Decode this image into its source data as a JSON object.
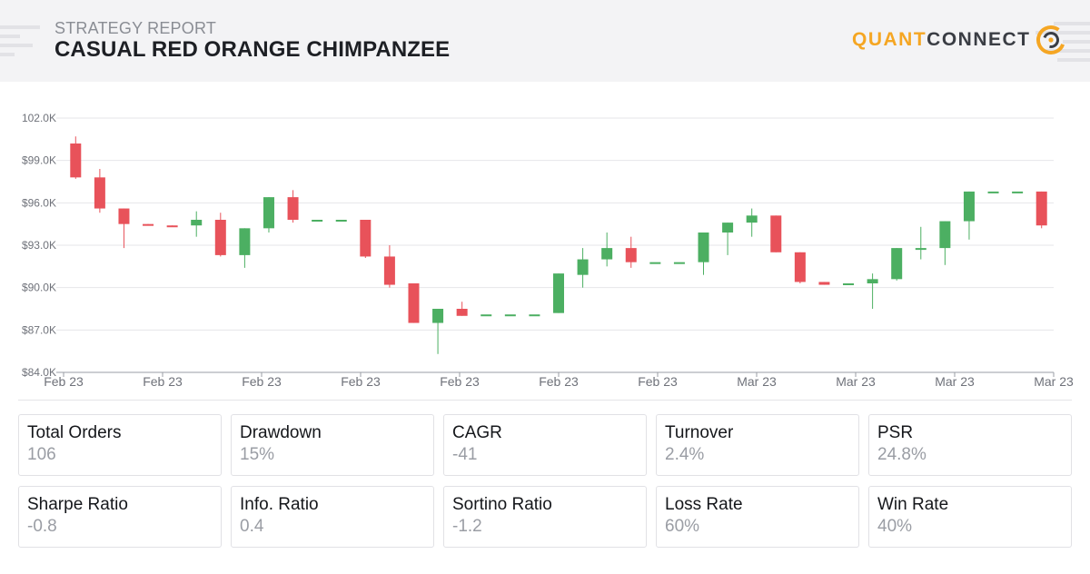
{
  "header": {
    "report_label": "STRATEGY REPORT",
    "title": "CASUAL RED ORANGE CHIMPANZEE",
    "brand_quant": "QUANT",
    "brand_connect": "CONNECT",
    "colors": {
      "brand_orange": "#f5a623",
      "background": "#f3f3f5"
    }
  },
  "chart_data": {
    "type": "candlestick",
    "y_ticks": [
      "$84.0K",
      "$87.0K",
      "$90.0K",
      "$93.0K",
      "$96.0K",
      "$99.0K",
      "102.0K"
    ],
    "y_tick_values": [
      84000,
      87000,
      90000,
      93000,
      96000,
      99000,
      102000
    ],
    "ylim": [
      84000,
      102000
    ],
    "x_ticks": [
      "Feb 23",
      "Feb 23",
      "Feb 23",
      "Feb 23",
      "Feb 23",
      "Feb 23",
      "Feb 23",
      "Mar 23",
      "Mar 23",
      "Mar 23",
      "Mar 23"
    ],
    "grid": true,
    "colors": {
      "up": "#4caf62",
      "down": "#e8525a",
      "grid": "#e6e6ea",
      "axis_text": "#6f727a"
    },
    "candles": [
      {
        "o": 100200,
        "h": 100700,
        "l": 97700,
        "c": 97800
      },
      {
        "o": 97800,
        "h": 98400,
        "l": 95300,
        "c": 95600
      },
      {
        "o": 95600,
        "h": 95600,
        "l": 92800,
        "c": 94500
      },
      {
        "o": 94500,
        "h": 94500,
        "l": 94400,
        "c": 94400
      },
      {
        "o": 94400,
        "h": 94400,
        "l": 94300,
        "c": 94300
      },
      {
        "o": 94400,
        "h": 95400,
        "l": 93600,
        "c": 94800
      },
      {
        "o": 94800,
        "h": 95300,
        "l": 92200,
        "c": 92300
      },
      {
        "o": 92300,
        "h": 94200,
        "l": 91400,
        "c": 94200
      },
      {
        "o": 94200,
        "h": 96400,
        "l": 93900,
        "c": 96400
      },
      {
        "o": 96400,
        "h": 96900,
        "l": 94600,
        "c": 94800
      },
      {
        "o": 94800,
        "h": 94800,
        "l": 94800,
        "c": 94800
      },
      {
        "o": 94800,
        "h": 94800,
        "l": 94800,
        "c": 94800
      },
      {
        "o": 94800,
        "h": 94800,
        "l": 92100,
        "c": 92200
      },
      {
        "o": 92200,
        "h": 93000,
        "l": 90000,
        "c": 90200
      },
      {
        "o": 90300,
        "h": 90300,
        "l": 87500,
        "c": 87500
      },
      {
        "o": 87500,
        "h": 88500,
        "l": 85300,
        "c": 88500
      },
      {
        "o": 88500,
        "h": 89000,
        "l": 88000,
        "c": 88000
      },
      {
        "o": 88100,
        "h": 88100,
        "l": 88100,
        "c": 88100
      },
      {
        "o": 88100,
        "h": 88100,
        "l": 88100,
        "c": 88100
      },
      {
        "o": 88100,
        "h": 88100,
        "l": 88100,
        "c": 88100
      },
      {
        "o": 88200,
        "h": 91000,
        "l": 88200,
        "c": 91000
      },
      {
        "o": 90900,
        "h": 92800,
        "l": 90000,
        "c": 92000
      },
      {
        "o": 92000,
        "h": 93900,
        "l": 91500,
        "c": 92800
      },
      {
        "o": 92800,
        "h": 93600,
        "l": 91400,
        "c": 91800
      },
      {
        "o": 91800,
        "h": 91800,
        "l": 91800,
        "c": 91800
      },
      {
        "o": 91800,
        "h": 91800,
        "l": 91800,
        "c": 91800
      },
      {
        "o": 91800,
        "h": 93900,
        "l": 90900,
        "c": 93900
      },
      {
        "o": 93900,
        "h": 94600,
        "l": 92300,
        "c": 94600
      },
      {
        "o": 94600,
        "h": 95600,
        "l": 93600,
        "c": 95100
      },
      {
        "o": 95100,
        "h": 95100,
        "l": 92500,
        "c": 92500
      },
      {
        "o": 92500,
        "h": 92500,
        "l": 90300,
        "c": 90400
      },
      {
        "o": 90400,
        "h": 90400,
        "l": 90200,
        "c": 90200
      },
      {
        "o": 90300,
        "h": 90300,
        "l": 90300,
        "c": 90300
      },
      {
        "o": 90300,
        "h": 91000,
        "l": 88500,
        "c": 90600
      },
      {
        "o": 90600,
        "h": 92800,
        "l": 90500,
        "c": 92800
      },
      {
        "o": 92800,
        "h": 94300,
        "l": 92000,
        "c": 92800
      },
      {
        "o": 92800,
        "h": 94700,
        "l": 91600,
        "c": 94700
      },
      {
        "o": 94700,
        "h": 96800,
        "l": 93400,
        "c": 96800
      },
      {
        "o": 96800,
        "h": 96800,
        "l": 96800,
        "c": 96800
      },
      {
        "o": 96800,
        "h": 96800,
        "l": 96800,
        "c": 96800
      },
      {
        "o": 96800,
        "h": 96800,
        "l": 94200,
        "c": 94400
      }
    ]
  },
  "metrics": [
    {
      "label": "Total Orders",
      "value": "106"
    },
    {
      "label": "Drawdown",
      "value": "15%"
    },
    {
      "label": "CAGR",
      "value": "-41"
    },
    {
      "label": "Turnover",
      "value": "2.4%"
    },
    {
      "label": "PSR",
      "value": "24.8%"
    },
    {
      "label": "Sharpe Ratio",
      "value": "-0.8"
    },
    {
      "label": "Info. Ratio",
      "value": "0.4"
    },
    {
      "label": "Sortino Ratio",
      "value": "-1.2"
    },
    {
      "label": "Loss Rate",
      "value": "60%"
    },
    {
      "label": "Win Rate",
      "value": "40%"
    }
  ]
}
